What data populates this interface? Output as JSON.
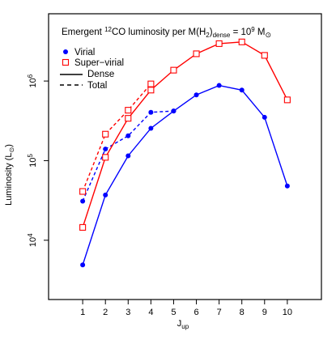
{
  "chart_data": {
    "type": "line",
    "title": "Emergent ¹²CO luminosity per M(H₂)dense = 10⁹ M☉",
    "title_parts": {
      "a": "Emergent ",
      "iso": "12",
      "b": "CO luminosity per M(H",
      "h2": "2",
      "c": ")",
      "dense": "dense",
      "d": " = 10",
      "exp": "9",
      "e": " M",
      "sun": "⊙"
    },
    "xlabel": "J",
    "xlabel_sub": "up",
    "ylabel": "Luminosity (L",
    "ylabel_sun": "⊙",
    "ylabel_close": ")",
    "y_scale": "log",
    "xlim": [
      -0.5,
      11.5
    ],
    "ylim": [
      1800,
      7000000
    ],
    "x_ticks": [
      1,
      2,
      3,
      4,
      5,
      6,
      7,
      8,
      9,
      10
    ],
    "y_ticks": [
      {
        "value": 10000,
        "base": "10",
        "exp": "4"
      },
      {
        "value": 100000,
        "base": "10",
        "exp": "5"
      },
      {
        "value": 1000000,
        "base": "10",
        "exp": "6"
      }
    ],
    "legend": {
      "placement": "top-left",
      "items": [
        {
          "label": "Virial",
          "kind": "dot",
          "color": "#0000ff"
        },
        {
          "label": "Super−virial",
          "kind": "square",
          "color": "#ff0000"
        },
        {
          "label": "Dense",
          "kind": "solid"
        },
        {
          "label": "Total",
          "kind": "dashed"
        }
      ]
    },
    "series": [
      {
        "group": "Virial",
        "component": "Dense",
        "color": "#0000ff",
        "marker": "dot",
        "dash": false,
        "x": [
          1,
          2,
          3,
          4,
          5,
          6,
          7,
          8,
          9,
          10
        ],
        "y": [
          4900,
          37000,
          115000,
          255000,
          420000,
          670000,
          880000,
          770000,
          350000,
          48000
        ]
      },
      {
        "group": "Virial",
        "component": "Total",
        "color": "#0000ff",
        "marker": "dot",
        "dash": true,
        "x": [
          1,
          2,
          3,
          4,
          5
        ],
        "y": [
          31000,
          140000,
          205000,
          405000,
          420000
        ]
      },
      {
        "group": "Super−virial",
        "component": "Dense",
        "color": "#ff0000",
        "marker": "square",
        "dash": false,
        "x": [
          1,
          2,
          3,
          4,
          5,
          6,
          7,
          8,
          9,
          10
        ],
        "y": [
          14500,
          110000,
          340000,
          770000,
          1370000,
          2200000,
          2950000,
          3100000,
          2100000,
          580000
        ]
      },
      {
        "group": "Super−virial",
        "component": "Total",
        "color": "#ff0000",
        "marker": "square",
        "dash": true,
        "x": [
          1,
          2,
          3,
          4
        ],
        "y": [
          41000,
          215000,
          430000,
          920000
        ]
      }
    ]
  }
}
